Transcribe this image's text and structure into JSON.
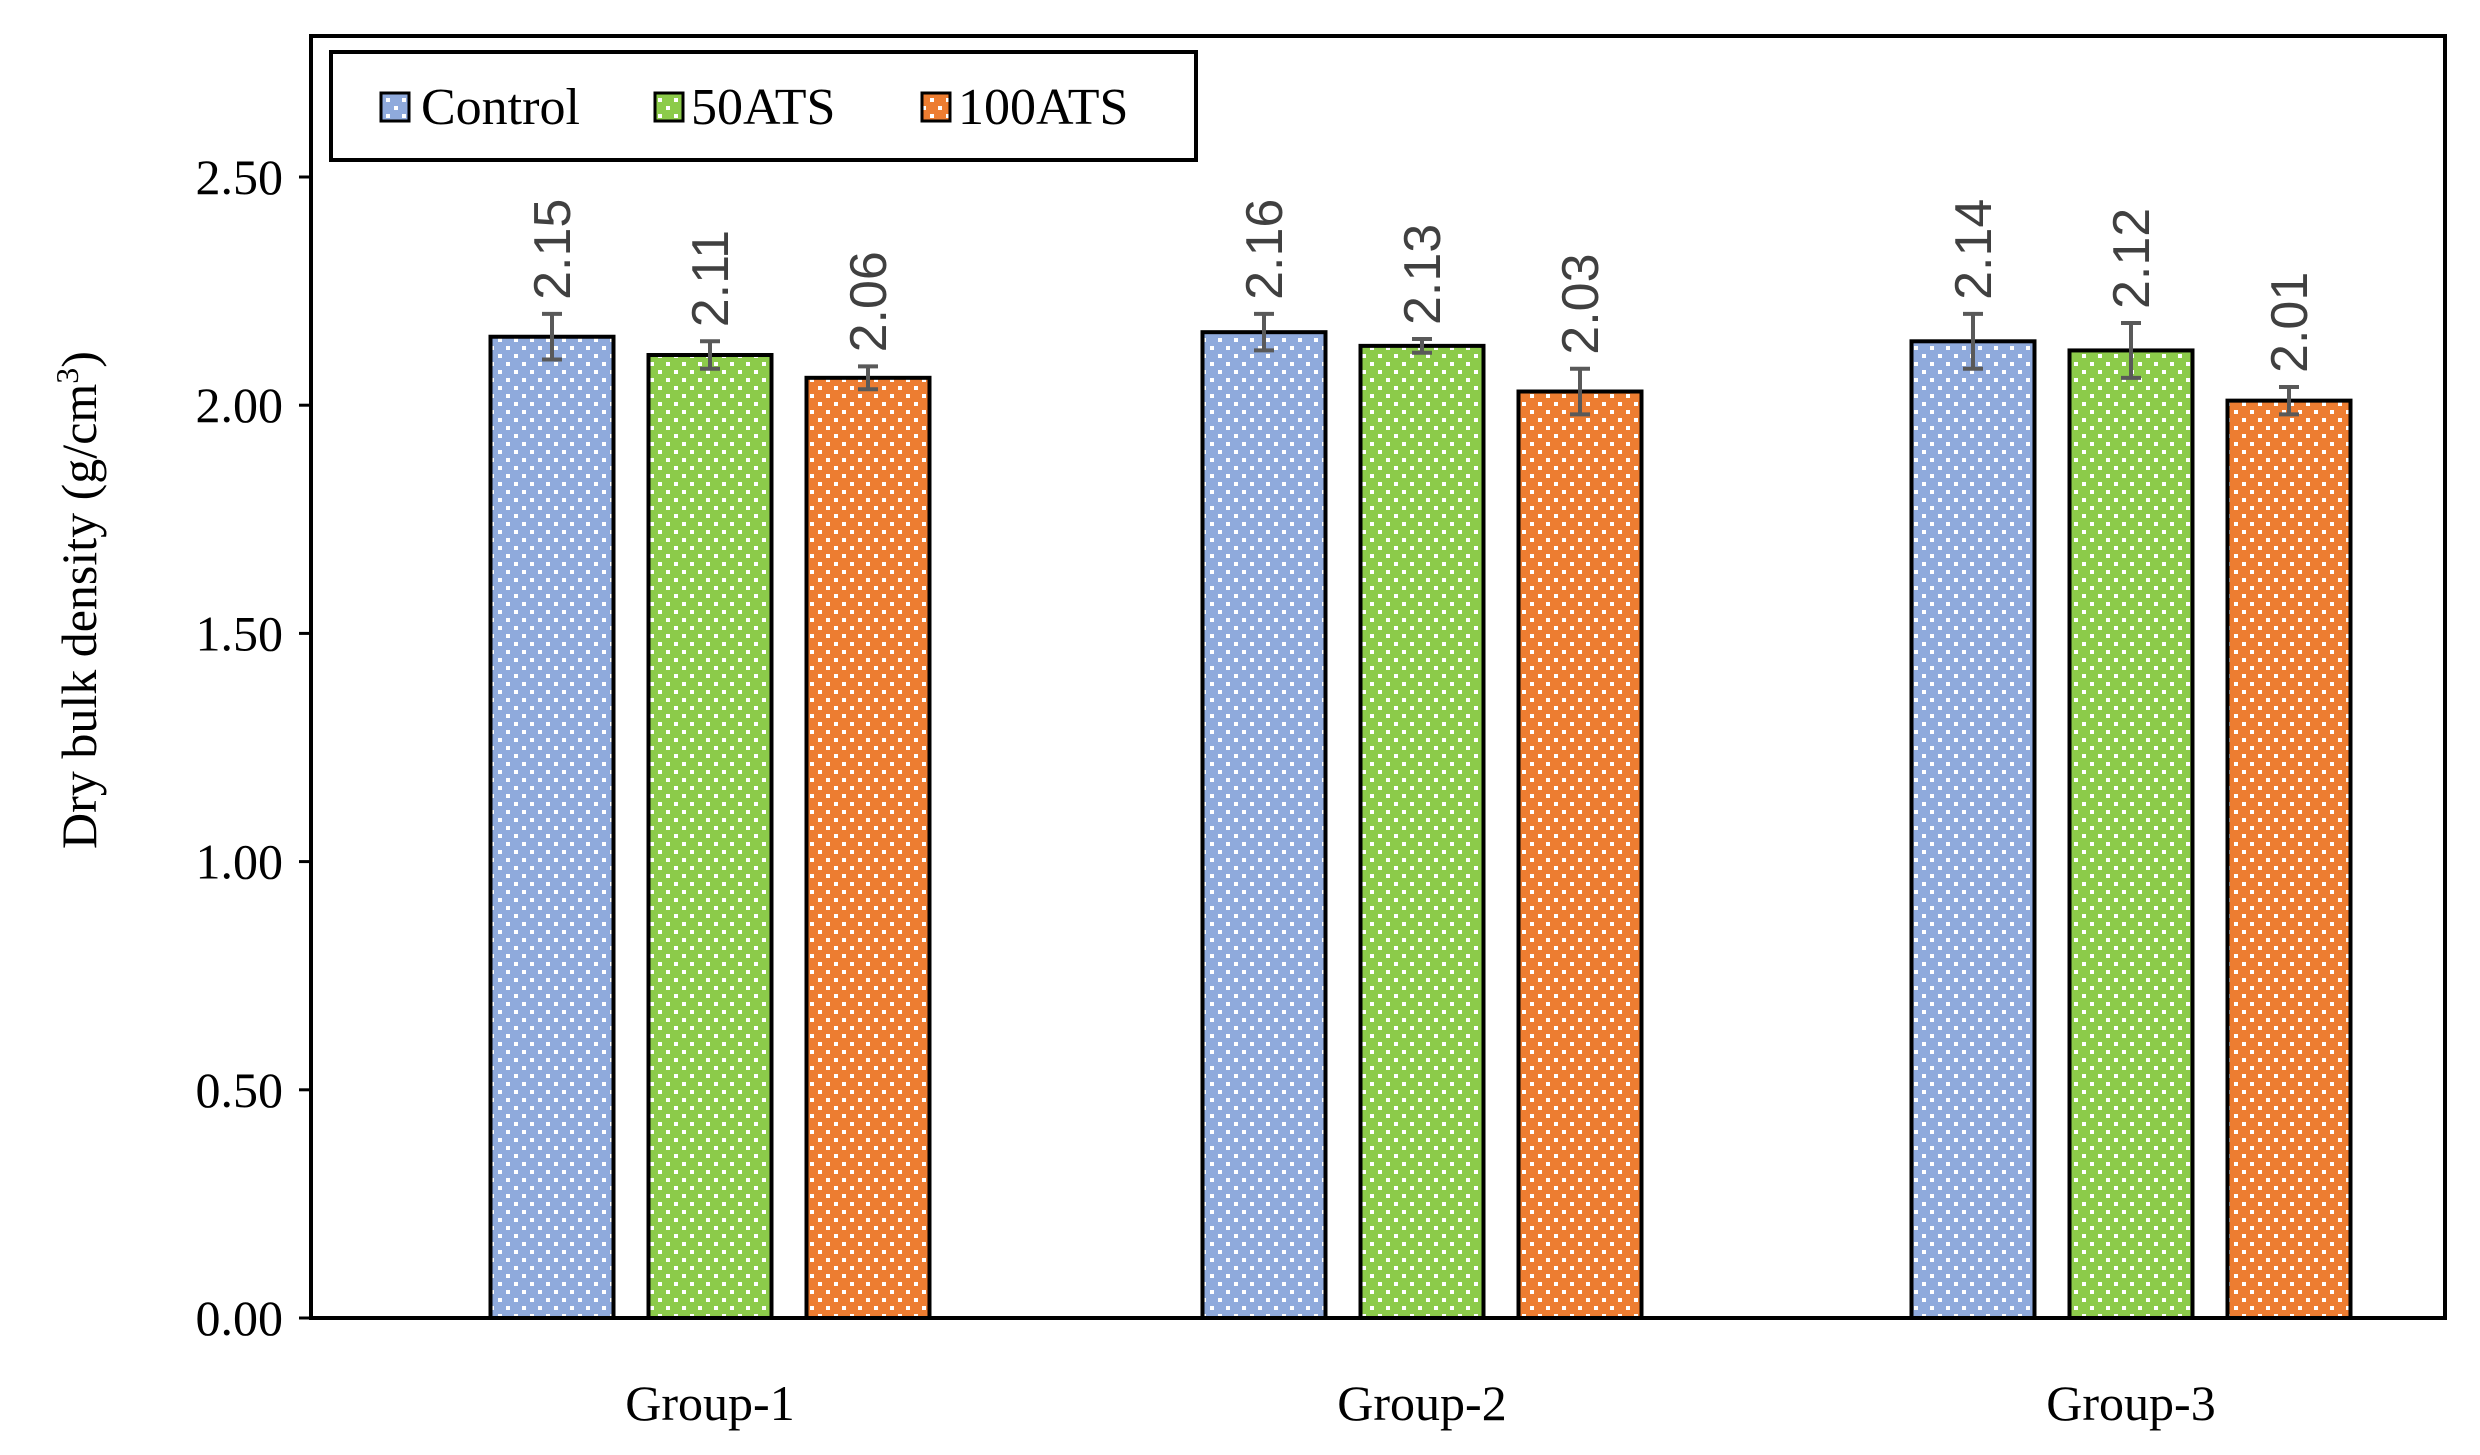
{
  "chart_data": {
    "type": "bar",
    "categories": [
      "Group-1",
      "Group-2",
      "Group-3"
    ],
    "series": [
      {
        "name": "Control",
        "color": "#8FAADC",
        "values": [
          2.15,
          2.16,
          2.14
        ],
        "errors": [
          0.05,
          0.04,
          0.06
        ]
      },
      {
        "name": "50ATS",
        "color": "#8CCB4A",
        "values": [
          2.11,
          2.13,
          2.12
        ],
        "errors": [
          0.03,
          0.015,
          0.06
        ]
      },
      {
        "name": "100ATS",
        "color": "#ED7D31",
        "values": [
          2.06,
          2.03,
          2.01
        ],
        "errors": [
          0.025,
          0.05,
          0.03
        ]
      }
    ],
    "data_labels": [
      [
        "2.15",
        "2.16",
        "2.14"
      ],
      [
        "2.11",
        "2.13",
        "2.12"
      ],
      [
        "2.06",
        "2.03",
        "2.01"
      ]
    ],
    "yticks": [
      0,
      0.5,
      1.0,
      1.5,
      2.0,
      2.5
    ],
    "ytick_labels": [
      "0.00",
      "0.50",
      "1.00",
      "1.50",
      "2.00",
      "2.50"
    ],
    "ylim": [
      0,
      2.8
    ],
    "ylabel": "Dry bulk density (g/cm",
    "ylabel_sup": "3",
    "ylabel_close": ")",
    "xlabel": "",
    "title": "",
    "legend_position": "top-left",
    "pattern": "dotted",
    "grid": false
  }
}
